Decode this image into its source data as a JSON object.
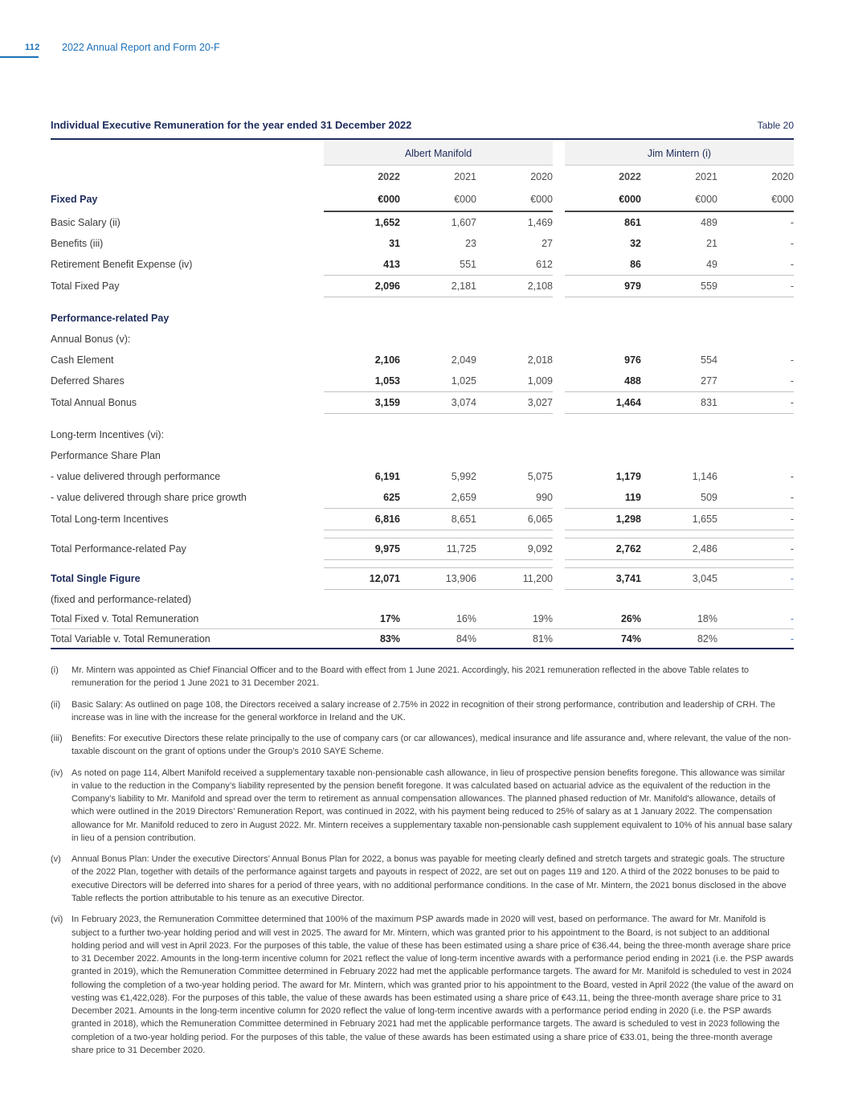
{
  "page": {
    "number": "112",
    "header_title": "2022 Annual Report and Form 20-F"
  },
  "colors": {
    "accent_blue": "#1d71b8",
    "navy": "#1e2c5c",
    "band_gray": "#f2f2f2"
  },
  "table": {
    "title": "Individual Executive Remuneration for the year ended 31 December 2022",
    "label": "Table 20",
    "groups": [
      {
        "name": "Albert Manifold"
      },
      {
        "name": "Jim Mintern (i)"
      }
    ],
    "years": [
      "2022",
      "2021",
      "2020"
    ],
    "unit": "€000",
    "fixed_pay_label": "Fixed Pay",
    "rows": [
      {
        "label": "Basic Salary (ii)",
        "values": [
          "1,652",
          "1,607",
          "1,469",
          "861",
          "489",
          "-"
        ]
      },
      {
        "label": "Benefits (iii)",
        "values": [
          "31",
          "23",
          "27",
          "32",
          "21",
          "-"
        ]
      },
      {
        "label": "Retirement Benefit Expense (iv)",
        "values": [
          "413",
          "551",
          "612",
          "86",
          "49",
          "-"
        ]
      },
      {
        "label": "Total Fixed Pay",
        "values": [
          "2,096",
          "2,181",
          "2,108",
          "979",
          "559",
          "-"
        ],
        "rule_above": true,
        "rule_below": true
      },
      {
        "spacer": 13
      },
      {
        "label": "Performance-related Pay",
        "bold": true
      },
      {
        "label": "Annual Bonus (v):"
      },
      {
        "label": "Cash Element",
        "values": [
          "2,106",
          "2,049",
          "2,018",
          "976",
          "554",
          "-"
        ]
      },
      {
        "label": "Deferred Shares",
        "values": [
          "1,053",
          "1,025",
          "1,009",
          "488",
          "277",
          "-"
        ]
      },
      {
        "label": "Total Annual Bonus",
        "values": [
          "3,159",
          "3,074",
          "3,027",
          "1,464",
          "831",
          "-"
        ],
        "rule_above": true,
        "rule_below": true
      },
      {
        "spacer": 13
      },
      {
        "label": "Long-term Incentives (vi):"
      },
      {
        "label": "Performance Share Plan"
      },
      {
        "label": "- value delivered through performance",
        "values": [
          "6,191",
          "5,992",
          "5,075",
          "1,179",
          "1,146",
          "-"
        ]
      },
      {
        "label": "- value delivered through share price growth",
        "values": [
          "625",
          "2,659",
          "990",
          "119",
          "509",
          "-"
        ]
      },
      {
        "label": "Total Long-term Incentives",
        "values": [
          "6,816",
          "8,651",
          "6,065",
          "1,298",
          "1,655",
          "-"
        ],
        "rule_above": true,
        "rule_below": true
      },
      {
        "spacer": 9
      },
      {
        "label": "Total Performance-related Pay",
        "values": [
          "9,975",
          "11,725",
          "9,092",
          "2,762",
          "2,486",
          "-"
        ],
        "rule_above": true,
        "rule_below": true
      },
      {
        "spacer": 9
      },
      {
        "label": "Total Single Figure",
        "bold": true,
        "values": [
          "12,071",
          "13,906",
          "11,200",
          "3,741",
          "3,045",
          "-"
        ],
        "rule_above": true,
        "rule_below": true,
        "dash_blue": true
      },
      {
        "label": "(fixed and performance-related)",
        "short": true
      },
      {
        "label": "Total Fixed v. Total Remuneration",
        "values": [
          "17%",
          "16%",
          "19%",
          "26%",
          "18%",
          "-"
        ],
        "short": true,
        "dash_blue": true
      },
      {
        "label": "Total Variable v. Total Remuneration",
        "values": [
          "83%",
          "84%",
          "81%",
          "74%",
          "82%",
          "-"
        ],
        "short": true,
        "full_rule_above": true,
        "dash_blue": true
      }
    ]
  },
  "footnotes": [
    {
      "num": "(i)",
      "text": "Mr. Mintern was appointed as Chief Financial Officer and to the Board with effect from 1 June 2021. Accordingly, his 2021 remuneration reflected in the above Table relates to remuneration for the period 1 June 2021 to 31 December 2021."
    },
    {
      "num": "(ii)",
      "text": "Basic Salary: As outlined on page 108, the Directors received a salary increase of 2.75% in 2022 in recognition of their strong performance, contribution and leadership of CRH. The increase was in line with the increase for the general workforce in Ireland and the UK."
    },
    {
      "num": "(iii)",
      "text": "Benefits: For executive Directors these relate principally to the use of company cars (or car allowances), medical insurance and life assurance and, where relevant, the value of the non-taxable discount on the grant of options under the Group’s 2010 SAYE Scheme."
    },
    {
      "num": "(iv)",
      "text": "As noted on page 114, Albert Manifold received a supplementary taxable non-pensionable cash allowance, in lieu of prospective pension benefits foregone. This allowance was similar in value to the reduction in the Company’s liability represented by the pension benefit foregone. It was calculated based on actuarial advice as the equivalent of the reduction in the Company’s liability to Mr. Manifold and spread over the term to retirement as annual compensation allowances. The planned phased reduction of Mr. Manifold's allowance, details of which were outlined in the 2019 Directors’ Remuneration Report, was continued in 2022, with his payment being reduced to 25% of salary as at 1 January 2022. The compensation allowance for Mr. Manifold reduced to zero in August 2022. Mr. Mintern receives a supplementary taxable non-pensionable cash supplement equivalent to 10% of his annual base salary in lieu of a pension contribution."
    },
    {
      "num": "(v)",
      "text": "Annual Bonus Plan: Under the executive Directors’ Annual Bonus Plan for 2022, a bonus was payable for meeting clearly defined and stretch targets and strategic goals. The structure of the 2022 Plan, together with details of the performance against targets and payouts in respect of 2022, are set out on pages 119 and 120. A third of the 2022 bonuses to be paid to executive Directors will be deferred into shares for a period of three years, with no additional performance conditions. In the case of Mr. Mintern, the 2021 bonus disclosed in the above Table reflects the portion attributable to his tenure as an executive Director."
    },
    {
      "num": "(vi)",
      "text": "In February 2023, the Remuneration Committee determined that 100% of the maximum PSP awards made in 2020 will vest, based on performance. The award for Mr. Manifold is subject to a further two-year holding period and will vest in 2025. The award for Mr. Mintern, which was granted prior to his appointment to the Board, is not subject to an additional holding period and will vest in April 2023. For the purposes of this table, the value of these has been estimated using a share price of €36.44, being the three-month average share price to 31 December 2022. Amounts in the long-term incentive column for 2021 reflect the value of long-term incentive awards with a performance period ending in 2021 (i.e. the PSP awards granted in 2019), which the Remuneration Committee determined in February 2022 had met the applicable performance targets. The award for Mr. Manifold is scheduled to vest in 2024 following the completion of a two-year holding period. The award for Mr. Mintern, which was granted prior to his appointment to the Board, vested in April 2022 (the value of the award on vesting was €1,422,028). For the purposes of this table, the value of these awards has been estimated using a share price of €43.11, being the three-month average share price to 31 December 2021. Amounts in the long-term incentive column for 2020 reflect the value of long-term incentive awards with a performance period ending in 2020 (i.e. the PSP awards granted in 2018), which the Remuneration Committee determined in February 2021 had met the applicable performance targets. The award is scheduled to vest in 2023 following the completion of a two-year holding period. For the purposes of this table, the value of these awards has been estimated using a share price of €33.01, being the three-month average share price to 31 December 2020."
    }
  ]
}
